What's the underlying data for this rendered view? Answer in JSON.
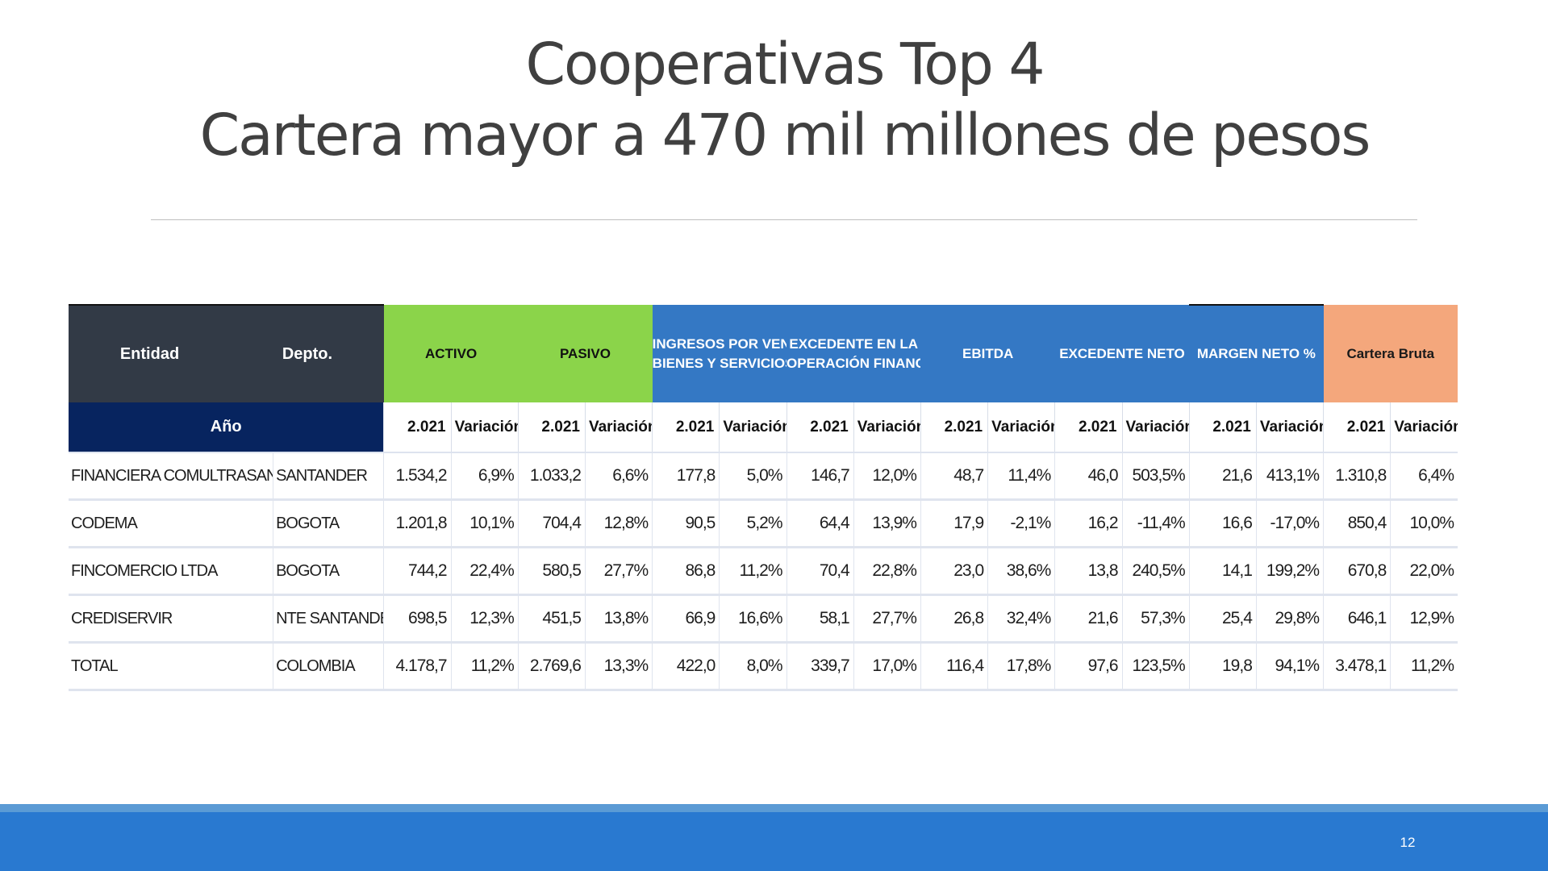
{
  "title": {
    "line1": "Cooperativas Top 4",
    "line2": "Cartera mayor a 470 mil millones de pesos"
  },
  "table": {
    "header": {
      "entidad": "Entidad",
      "depto": "Depto.",
      "activo": "ACTIVO",
      "pasivo": "PASIVO",
      "ingresos_l1": "INGRESOS POR VENTA DE",
      "ingresos_l2": "BIENES Y SERVICIOS",
      "excedente_op_l1": "EXCEDENTE EN LA",
      "excedente_op_l2": "OPERACIÓN FINANCIERA",
      "ebitda": "EBITDA",
      "excedente_neto": "EXCEDENTE NETO",
      "margen_neto": "MARGEN NETO %",
      "cartera_bruta": "Cartera Bruta"
    },
    "subheader": {
      "anio": "Año",
      "year": "2.021",
      "variacion": "Variación"
    },
    "colors": {
      "entidad_header": "#323a46",
      "anio_header": "#07245f",
      "green_header": "#8bd44a",
      "blue_header": "#3478c4",
      "orange_header": "#f4a77c"
    },
    "rows": [
      {
        "entidad": "FINANCIERA COMULTRASAN LTDA",
        "depto": "SANTANDER",
        "values": [
          "1.534,2",
          "6,9%",
          "1.033,2",
          "6,6%",
          "177,8",
          "5,0%",
          "146,7",
          "12,0%",
          "48,7",
          "11,4%",
          "46,0",
          "503,5%",
          "21,6",
          "413,1%",
          "1.310,8",
          "6,4%"
        ]
      },
      {
        "entidad": "CODEMA",
        "depto": "BOGOTA",
        "values": [
          "1.201,8",
          "10,1%",
          "704,4",
          "12,8%",
          "90,5",
          "5,2%",
          "64,4",
          "13,9%",
          "17,9",
          "-2,1%",
          "16,2",
          "-11,4%",
          "16,6",
          "-17,0%",
          "850,4",
          "10,0%"
        ]
      },
      {
        "entidad": "FINCOMERCIO LTDA",
        "depto": "BOGOTA",
        "values": [
          "744,2",
          "22,4%",
          "580,5",
          "27,7%",
          "86,8",
          "11,2%",
          "70,4",
          "22,8%",
          "23,0",
          "38,6%",
          "13,8",
          "240,5%",
          "14,1",
          "199,2%",
          "670,8",
          "22,0%"
        ]
      },
      {
        "entidad": "CREDISERVIR",
        "depto": "NTE SANTANDER",
        "values": [
          "698,5",
          "12,3%",
          "451,5",
          "13,8%",
          "66,9",
          "16,6%",
          "58,1",
          "27,7%",
          "26,8",
          "32,4%",
          "21,6",
          "57,3%",
          "25,4",
          "29,8%",
          "646,1",
          "12,9%"
        ]
      },
      {
        "entidad": "TOTAL",
        "depto": "COLOMBIA",
        "values": [
          "4.178,7",
          "11,2%",
          "2.769,6",
          "13,3%",
          "422,0",
          "8,0%",
          "339,7",
          "17,0%",
          "116,4",
          "17,8%",
          "97,6",
          "123,5%",
          "19,8",
          "94,1%",
          "3.478,1",
          "11,2%"
        ]
      }
    ]
  },
  "footer": {
    "page_number": "12"
  }
}
